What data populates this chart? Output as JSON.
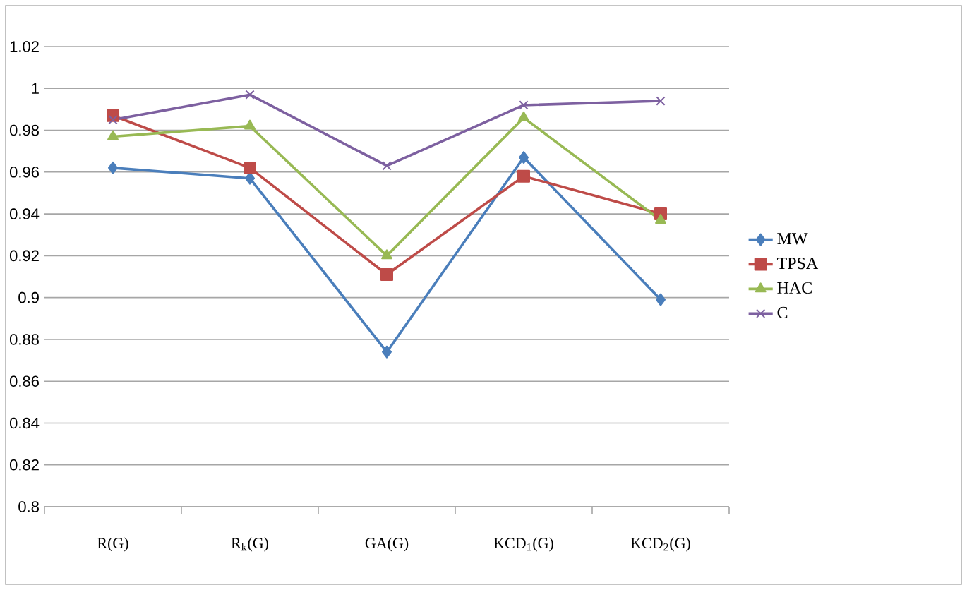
{
  "chart_data": {
    "type": "line",
    "categories": [
      "R(G)",
      "R$_{k}$(G)",
      "GA(G)",
      "KCD$_{1}$(G)",
      "KCD$_{2}$(G)"
    ],
    "series": [
      {
        "name": "MW",
        "color": "#4a7ebb",
        "marker": "diamond",
        "values": [
          0.962,
          0.957,
          0.874,
          0.967,
          0.899
        ]
      },
      {
        "name": "TPSA",
        "color": "#be4b48",
        "marker": "square",
        "values": [
          0.987,
          0.962,
          0.911,
          0.958,
          0.94
        ]
      },
      {
        "name": "HAC",
        "color": "#98b954",
        "marker": "triangle",
        "values": [
          0.977,
          0.982,
          0.92,
          0.986,
          0.937
        ]
      },
      {
        "name": "C",
        "color": "#7d60a0",
        "marker": "cross",
        "values": [
          0.985,
          0.997,
          0.963,
          0.992,
          0.994
        ]
      }
    ],
    "ylim": [
      0.8,
      1.02
    ],
    "yticks": [
      0.8,
      0.82,
      0.84,
      0.86,
      0.88,
      0.9,
      0.92,
      0.94,
      0.96,
      0.98,
      1,
      1.02
    ],
    "grid": "y",
    "legend": "right"
  }
}
